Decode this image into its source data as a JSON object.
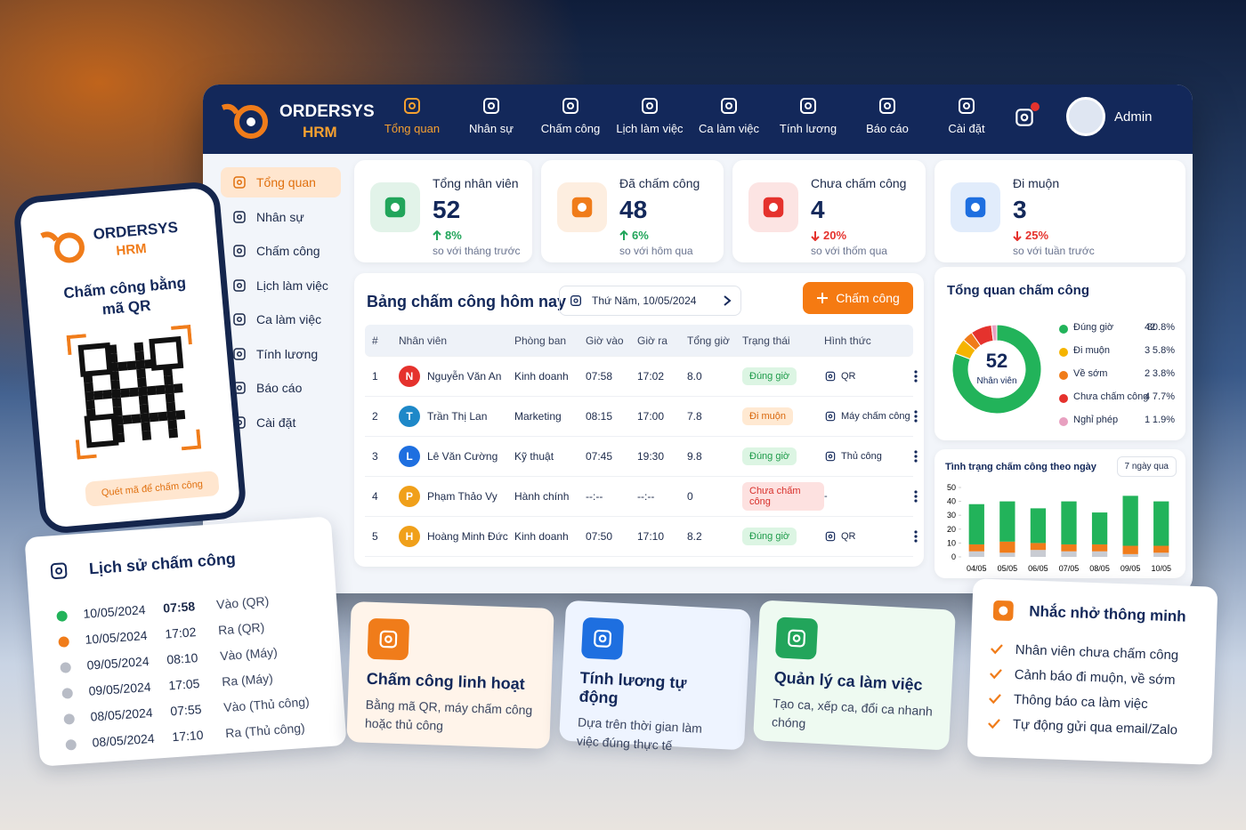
{
  "brand": {
    "name": "ORDERSYS",
    "product": "HRM"
  },
  "top_nav": {
    "items": [
      "Tổng quan",
      "Nhân sự",
      "Chấm công",
      "Lịch làm việc",
      "Ca làm việc",
      "Tính lương",
      "Báo cáo",
      "Cài đặt"
    ],
    "active": 0,
    "user": "Admin"
  },
  "sidebar": {
    "items": [
      "Tổng quan",
      "Nhân sự",
      "Chấm công",
      "Lịch làm việc",
      "Ca làm việc",
      "Tính lương",
      "Báo cáo",
      "Cài đặt"
    ],
    "active": 0
  },
  "stats": [
    {
      "label": "Tổng nhân viên",
      "value": 52,
      "trend": "up",
      "change": "8%",
      "note": "so với tháng trước",
      "color": "#22a55b"
    },
    {
      "label": "Đã chấm công",
      "value": 48,
      "trend": "up",
      "change": "6%",
      "note": "so với hôm qua",
      "color": "#f07c1a"
    },
    {
      "label": "Chưa chấm công",
      "value": 4,
      "trend": "down",
      "change": "20%",
      "note": "so với thốm qua",
      "color": "#e5322d"
    },
    {
      "label": "Đi muộn",
      "value": 3,
      "trend": "down",
      "change": "25%",
      "note": "so với tuần trước",
      "color": "#1e6fe0"
    }
  ],
  "attendance_table": {
    "title": "Bảng chấm công hôm nay",
    "date": "Thứ Năm, 10/05/2024",
    "button": "Chấm công",
    "columns": [
      "#",
      "Nhân viên",
      "Phòng ban",
      "Giờ vào",
      "Giờ ra",
      "Tổng giờ",
      "Trạng thái",
      "Hình thức"
    ],
    "rows": [
      {
        "no": 1,
        "initial": "N",
        "avatar_color": "#e5322d",
        "name": "Nguyễn Văn An",
        "dept": "Kinh doanh",
        "in": "07:58",
        "out": "17:02",
        "hours": "8.0",
        "status": "Đúng giờ",
        "status_tone": "ok",
        "method": "QR"
      },
      {
        "no": 2,
        "initial": "T",
        "avatar_color": "#1e88c8",
        "name": "Trần Thị Lan",
        "dept": "Marketing",
        "in": "08:15",
        "out": "17:00",
        "hours": "7.8",
        "status": "Đi muộn",
        "status_tone": "warn",
        "method": "Máy chấm công"
      },
      {
        "no": 3,
        "initial": "L",
        "avatar_color": "#1e6fe0",
        "name": "Lê Văn Cường",
        "dept": "Kỹ thuật",
        "in": "07:45",
        "out": "19:30",
        "hours": "9.8",
        "status": "Đúng giờ",
        "status_tone": "ok",
        "method": "Thủ công"
      },
      {
        "no": 4,
        "initial": "P",
        "avatar_color": "#f0a01a",
        "name": "Phạm Thảo Vy",
        "dept": "Hành chính",
        "in": "--:--",
        "out": "--:--",
        "hours": "0",
        "status": "Chưa chấm công",
        "status_tone": "bad",
        "method": "-"
      },
      {
        "no": 5,
        "initial": "H",
        "avatar_color": "#f0a01a",
        "name": "Hoàng Minh Đức",
        "dept": "Kinh doanh",
        "in": "07:50",
        "out": "17:10",
        "hours": "8.2",
        "status": "Đúng giờ",
        "status_tone": "ok",
        "method": "QR"
      }
    ]
  },
  "chart_data": [
    {
      "type": "pie",
      "title": "Tổng quan chấm công",
      "center_value": 52,
      "center_label": "Nhân viên",
      "categories": [
        "Đúng giờ",
        "Đi muộn",
        "Về sớm",
        "Chưa chấm công",
        "Nghỉ phép"
      ],
      "values": [
        42,
        3,
        2,
        4,
        1
      ],
      "percents": [
        "80.8%",
        "5.8%",
        "3.8%",
        "7.7%",
        "1.9%"
      ],
      "colors": [
        "#22b35a",
        "#f5b400",
        "#f07c1a",
        "#e5322d",
        "#e8a0c0"
      ]
    },
    {
      "type": "bar",
      "stacked": true,
      "title": "Tình trạng chấm công theo ngày",
      "range": "7 ngày qua",
      "categories": [
        "04/05",
        "05/05",
        "06/05",
        "07/05",
        "08/05",
        "09/05",
        "10/05"
      ],
      "ylim": [
        0,
        50
      ],
      "yticks": [
        0,
        10,
        20,
        30,
        40,
        50
      ],
      "series": [
        {
          "color": "#c9ccd3",
          "values": [
            4,
            3,
            5,
            4,
            4,
            2,
            3
          ]
        },
        {
          "color": "#f07c1a",
          "values": [
            5,
            8,
            5,
            5,
            5,
            6,
            5
          ]
        },
        {
          "color": "#22b35a",
          "values": [
            29,
            29,
            25,
            31,
            23,
            36,
            32
          ]
        }
      ]
    }
  ],
  "phone": {
    "title": "Chấm công bằng mã QR",
    "scan_button": "Quét mã để chấm công"
  },
  "history": {
    "title": "Lịch sử chấm công",
    "entries": [
      {
        "date": "10/05/2024",
        "time": "07:58",
        "action": "Vào (QR)",
        "dot_color": "#22b35a"
      },
      {
        "date": "10/05/2024",
        "time": "17:02",
        "action": "Ra (QR)",
        "dot_color": "#f07c1a"
      },
      {
        "date": "09/05/2024",
        "time": "08:10",
        "action": "Vào (Máy)",
        "dot_color": "#b8bcc6"
      },
      {
        "date": "09/05/2024",
        "time": "17:05",
        "action": "Ra (Máy)",
        "dot_color": "#b8bcc6"
      },
      {
        "date": "08/05/2024",
        "time": "07:55",
        "action": "Vào (Thủ công)",
        "dot_color": "#b8bcc6"
      },
      {
        "date": "08/05/2024",
        "time": "17:10",
        "action": "Ra (Thủ công)",
        "dot_color": "#b8bcc6"
      }
    ]
  },
  "features": [
    {
      "title": "Chấm công linh hoạt",
      "description": "Bằng mã QR, máy chấm công hoặc thủ công",
      "color": "#f07c1a",
      "bg": "#fff4ea"
    },
    {
      "title": "Tính lương tự động",
      "description": "Dựa trên thời gian làm việc đúng thực tế",
      "color": "#1e6fe0",
      "bg": "#eef4ff"
    },
    {
      "title": "Quản lý ca làm việc",
      "description": "Tạo ca, xếp ca, đổi ca nhanh chóng",
      "color": "#22a55b",
      "bg": "#eefaf1"
    }
  ],
  "reminder": {
    "title": "Nhắc nhở thông minh",
    "items": [
      "Nhân viên chưa chấm công",
      "Cảnh báo đi muộn, về sớm",
      "Thông báo ca làm việc",
      "Tự động gửi qua email/Zalo"
    ]
  }
}
